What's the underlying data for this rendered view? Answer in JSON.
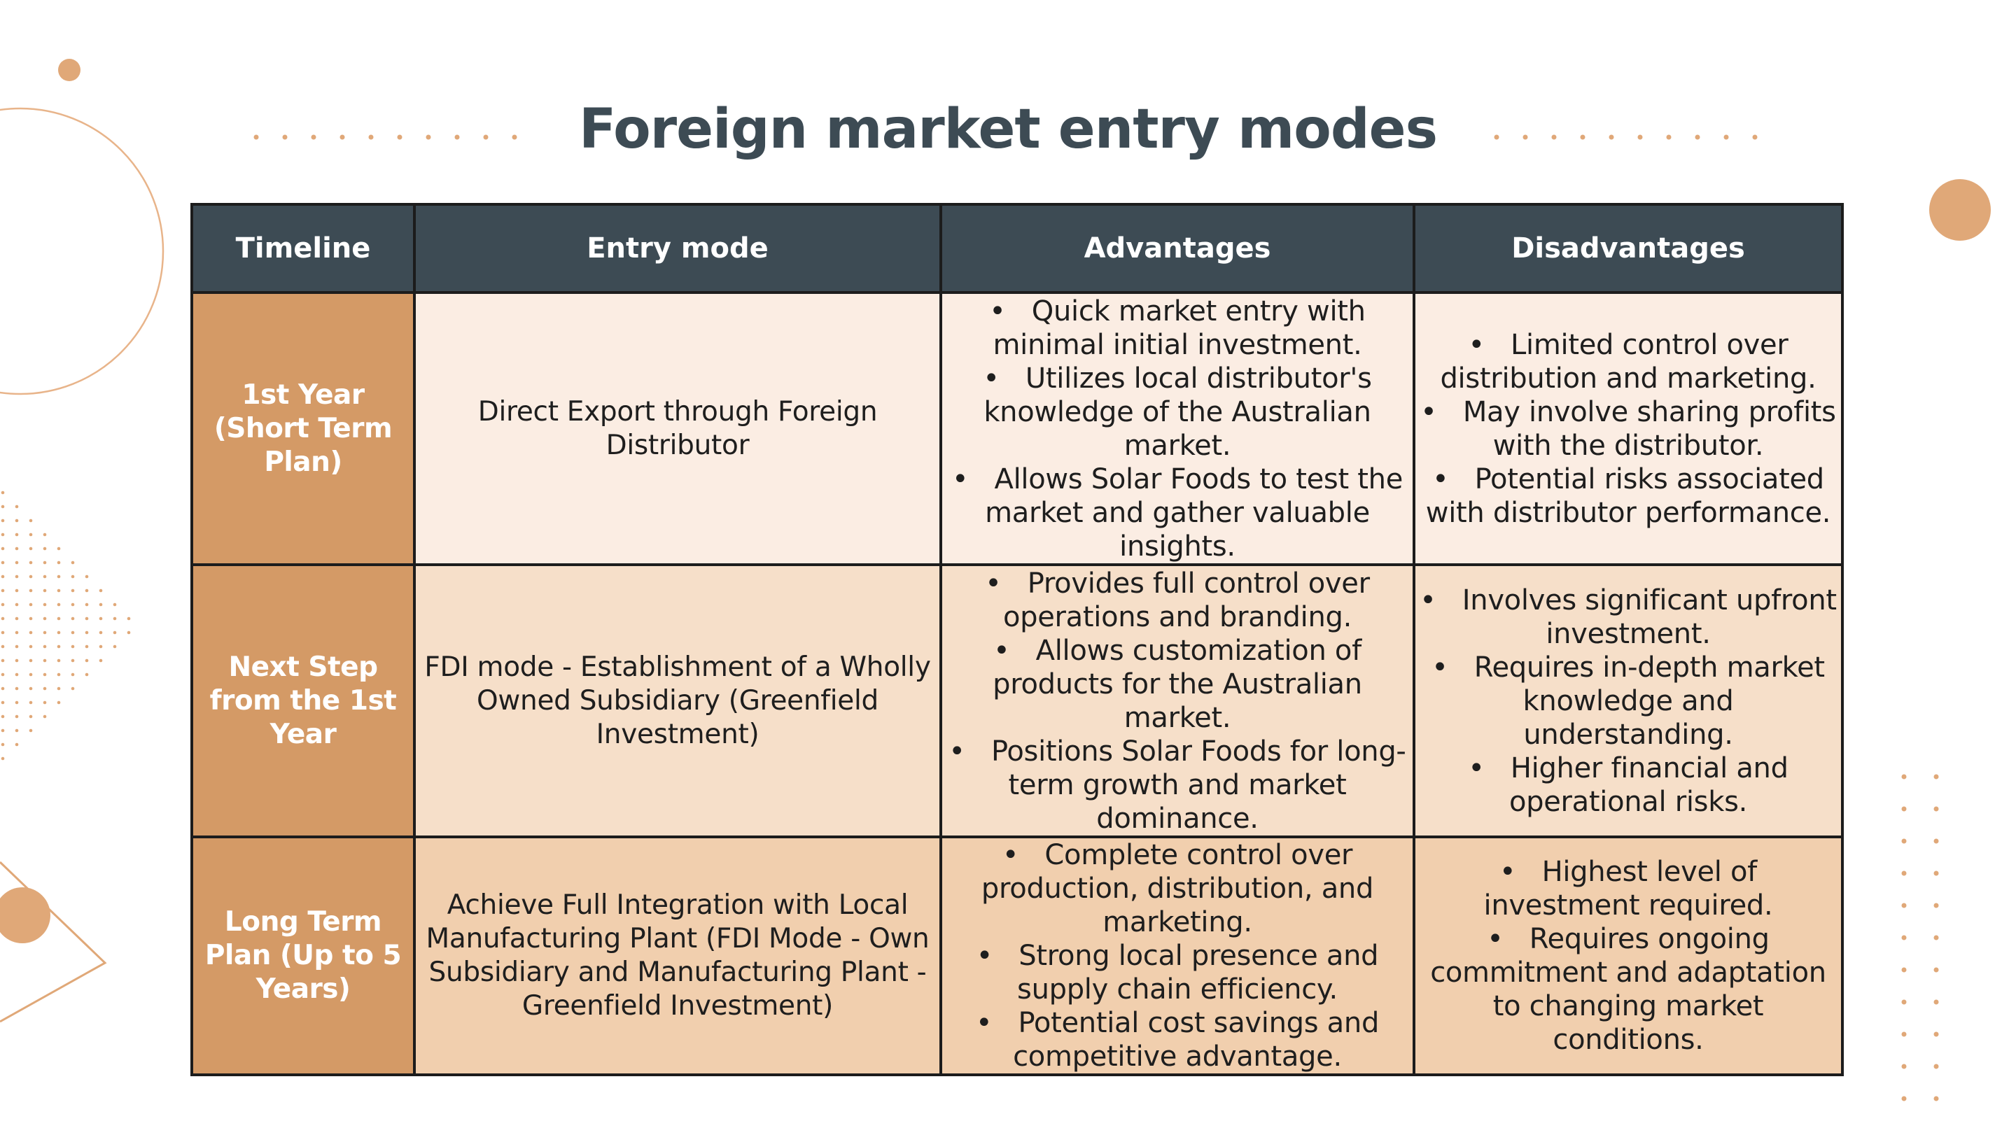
{
  "title": "Foreign market entry modes",
  "colors": {
    "title": "#3d4b54",
    "header_bg": "#3d4b54",
    "timeline_bg": "#d49a66",
    "row1_bg": "#fbede3",
    "row2_bg": "#f6dfc9",
    "row3_bg": "#f1cfae",
    "accent": "#e0a878"
  },
  "table": {
    "headers": [
      "Timeline",
      "Entry mode",
      "Advantages",
      "Disadvantages"
    ],
    "rows": [
      {
        "timeline": "1st Year (Short Term Plan)",
        "entry_mode": "Direct Export through Foreign Distributor",
        "advantages": [
          "Quick market entry with minimal initial investment.",
          "Utilizes local distributor's knowledge of the Australian market.",
          "Allows Solar Foods to test the market and gather valuable insights."
        ],
        "disadvantages": [
          "Limited control over distribution and marketing.",
          "May involve sharing profits with the distributor.",
          "Potential risks associated with distributor performance."
        ]
      },
      {
        "timeline": "Next Step from the 1st Year",
        "entry_mode": "FDI mode - Establishment of a Wholly Owned Subsidiary (Greenfield Investment)",
        "advantages": [
          "Provides full control over operations and branding.",
          "Allows customization of products for the Australian market.",
          "Positions Solar Foods for long-term growth and market dominance."
        ],
        "disadvantages": [
          "Involves significant upfront investment.",
          "Requires in-depth market knowledge and understanding.",
          "Higher financial and operational risks."
        ]
      },
      {
        "timeline": "Long Term Plan (Up to 5 Years)",
        "entry_mode": "Achieve Full Integration with Local Manufacturing Plant (FDI Mode - Own Subsidiary and Manufacturing Plant - Greenfield Investment)",
        "advantages": [
          "Complete control over production, distribution, and marketing.",
          "Strong local presence and supply chain efficiency.",
          "Potential cost savings and competitive advantage."
        ],
        "disadvantages": [
          "Highest level of investment required.",
          "Requires ongoing commitment and adaptation to changing market conditions."
        ]
      }
    ]
  }
}
